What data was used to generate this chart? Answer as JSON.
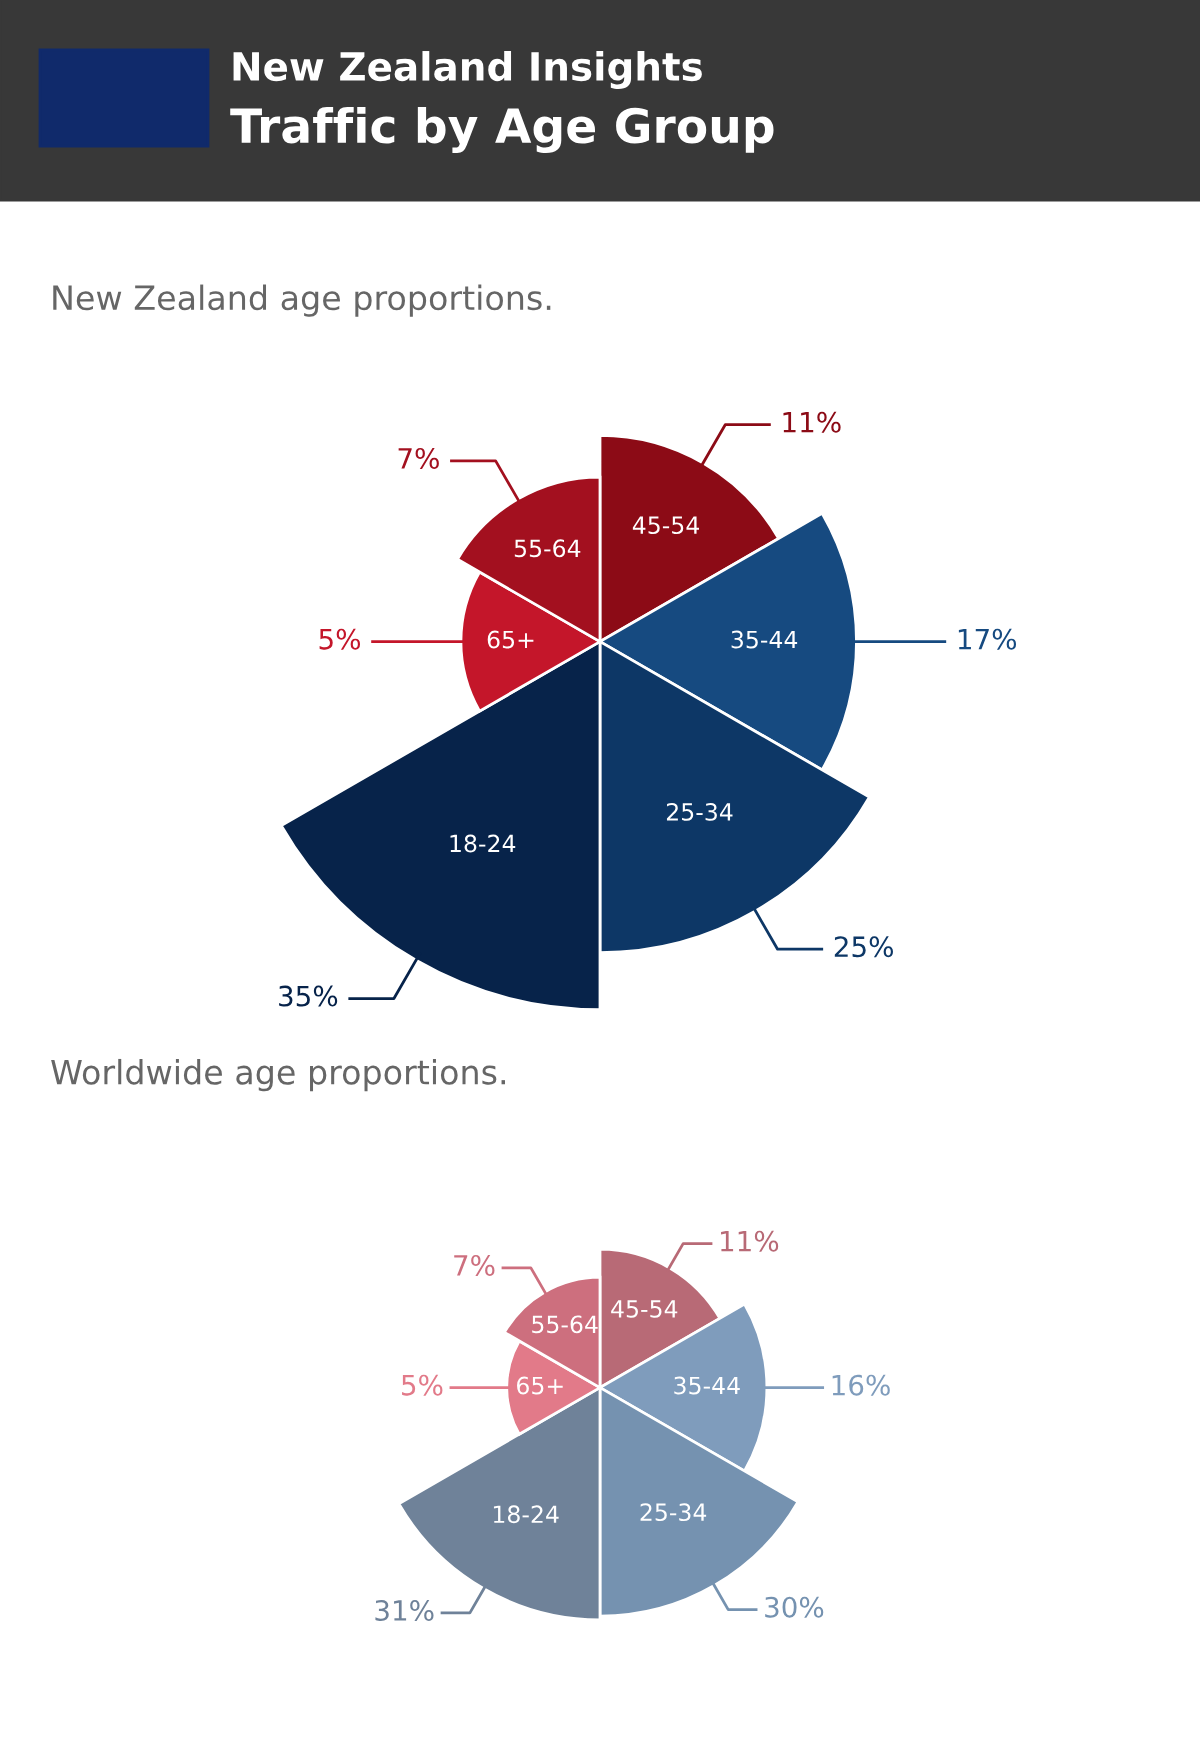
{
  "chart_data": [
    {
      "type": "other",
      "title": "New Zealand age proportions.",
      "annotations": [
        "New Zealand Insights",
        "Traffic by Age Group"
      ],
      "categories": [
        "45-54",
        "35-44",
        "25-34",
        "18-24",
        "65+",
        "55-64"
      ],
      "values": [
        11,
        17,
        25,
        35,
        5,
        7
      ],
      "value_labels": [
        "11%",
        "17%",
        "25%",
        "35%",
        "5%",
        "7%"
      ],
      "colors": [
        "#8c0b16",
        "#164a80",
        "#0d3766",
        "#07234a",
        "#c4162a",
        "#a3101f"
      ],
      "data_labels": true
    },
    {
      "type": "other",
      "title": "Worldwide age proportions.",
      "categories": [
        "45-54",
        "35-44",
        "25-34",
        "18-24",
        "65+",
        "55-64"
      ],
      "values": [
        11,
        16,
        30,
        31,
        5,
        7
      ],
      "value_labels": [
        "11%",
        "16%",
        "30%",
        "31%",
        "5%",
        "7%"
      ],
      "colors": [
        "#b86a76",
        "#7f9cbc",
        "#7592b0",
        "#6f8299",
        "#e27a89",
        "#cd6f7e"
      ],
      "data_labels": true
    }
  ]
}
